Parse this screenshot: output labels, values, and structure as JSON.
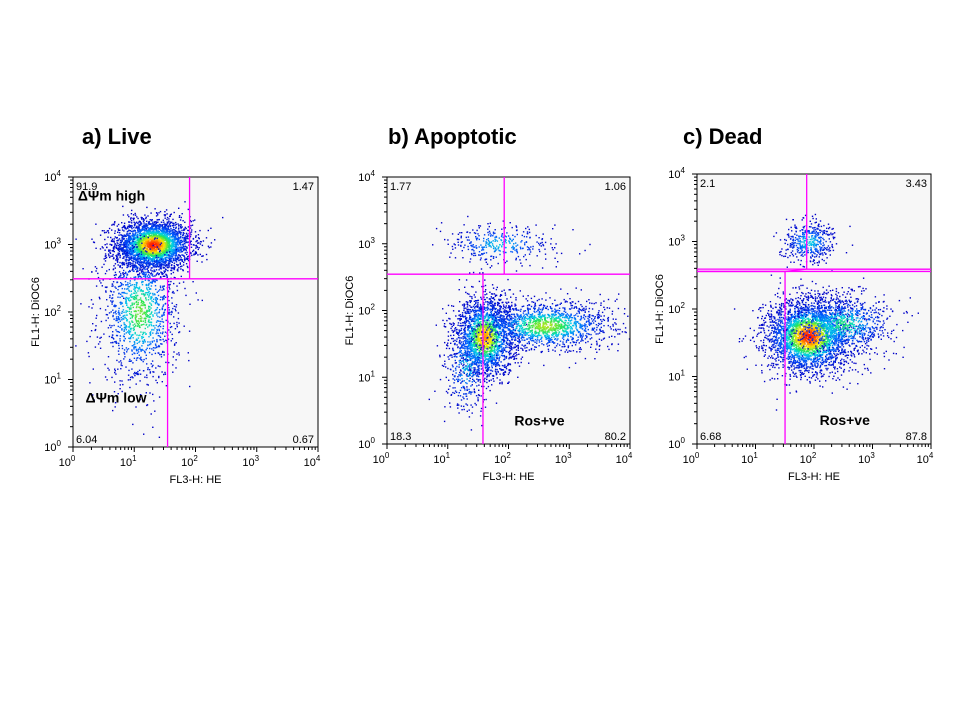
{
  "chart_data": [
    {
      "type": "scatter",
      "title": "a) Live",
      "xlabel": "FL3-H: HE",
      "ylabel": "FL1-H: DiOC6",
      "xscale": "log",
      "yscale": "log",
      "xlim": [
        1,
        10000
      ],
      "ylim": [
        1,
        10000
      ],
      "tick_base": "10",
      "tick_exponents": [
        "0",
        "1",
        "2",
        "3",
        "4"
      ],
      "gates": {
        "x": [
          35,
          80
        ],
        "y": [
          310,
          310
        ]
      },
      "quadrant_values": {
        "top_left": "91.9",
        "top_right": "1.47",
        "bottom_left": "6.04",
        "bottom_right": "0.67"
      },
      "annotations": [
        {
          "text": "ΔΨm high",
          "x": 1.2,
          "y": 4500
        },
        {
          "text": "ΔΨm low",
          "x": 1.6,
          "y": 4.6
        }
      ],
      "populations": [
        {
          "x": 20,
          "y": 1000,
          "sx": 0.25,
          "sy": 0.15,
          "weight": 0.7
        },
        {
          "x": 12,
          "y": 100,
          "sx": 0.25,
          "sy": 0.42,
          "weight": 0.3
        }
      ]
    },
    {
      "type": "scatter",
      "title": "b) Apoptotic",
      "xlabel": "FL3-H: HE",
      "ylabel": "FL1-H: DiOC6",
      "xscale": "log",
      "yscale": "log",
      "xlim": [
        1,
        10000
      ],
      "ylim": [
        1,
        10000
      ],
      "tick_base": "10",
      "tick_exponents": [
        "0",
        "1",
        "2",
        "3",
        "4"
      ],
      "gates": {
        "x": [
          38,
          85
        ],
        "y": [
          350,
          350
        ]
      },
      "quadrant_values": {
        "top_left": "1.77",
        "top_right": "1.06",
        "bottom_left": "18.3",
        "bottom_right": "80.2"
      },
      "annotations": [
        {
          "text": "Ros+ve",
          "x": 125,
          "y": 1.9
        }
      ],
      "populations": [
        {
          "x": 40,
          "y": 40,
          "sx": 0.2,
          "sy": 0.25,
          "weight": 0.5
        },
        {
          "x": 400,
          "y": 60,
          "sx": 0.45,
          "sy": 0.15,
          "weight": 0.35
        },
        {
          "x": 70,
          "y": 1000,
          "sx": 0.35,
          "sy": 0.12,
          "weight": 0.08
        },
        {
          "x": 20,
          "y": 15,
          "sx": 0.15,
          "sy": 0.3,
          "weight": 0.07
        }
      ]
    },
    {
      "type": "scatter",
      "title": "c) Dead",
      "xlabel": "FL3-H: HE",
      "ylabel": "FL1-H: DiOC6",
      "xscale": "log",
      "yscale": "log",
      "xlim": [
        1,
        10000
      ],
      "ylim": [
        1,
        10000
      ],
      "tick_base": "10",
      "tick_exponents": [
        "0",
        "1",
        "2",
        "3",
        "4"
      ],
      "gates": {
        "x": [
          32,
          75
        ],
        "y": [
          360,
          390
        ]
      },
      "quadrant_values": {
        "top_left": "2.1",
        "top_right": "3.43",
        "bottom_left": "6.68",
        "bottom_right": "87.8"
      },
      "annotations": [
        {
          "text": "Ros+ve",
          "x": 125,
          "y": 1.9
        }
      ],
      "populations": [
        {
          "x": 80,
          "y": 40,
          "sx": 0.3,
          "sy": 0.22,
          "weight": 0.7
        },
        {
          "x": 300,
          "y": 60,
          "sx": 0.35,
          "sy": 0.18,
          "weight": 0.2
        },
        {
          "x": 80,
          "y": 1000,
          "sx": 0.18,
          "sy": 0.12,
          "weight": 0.1
        }
      ]
    }
  ],
  "colors": {
    "gate": "#ff00ff",
    "plot_background": "#f7f7f7",
    "density_low": "#0000ff",
    "density_high": "#ff2000"
  }
}
